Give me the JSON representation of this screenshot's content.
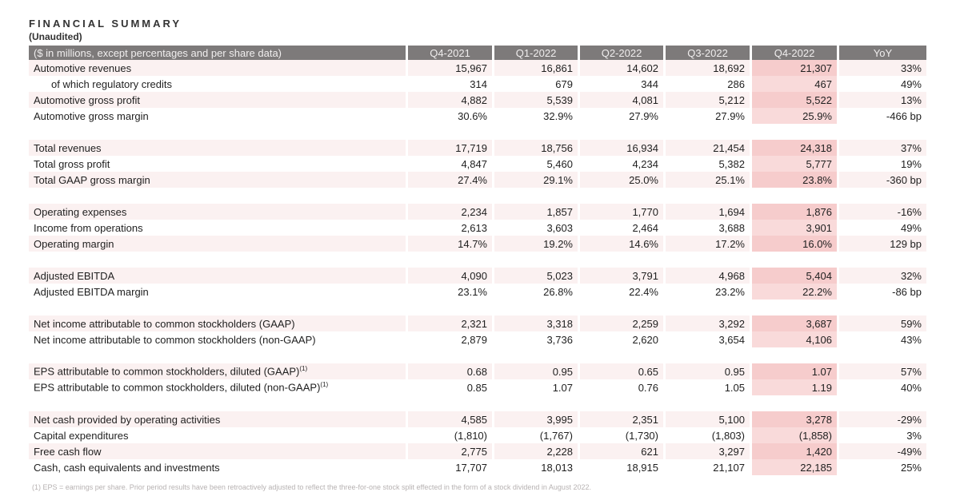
{
  "header": {
    "title": "FINANCIAL SUMMARY",
    "subtitle": "(Unaudited)"
  },
  "table": {
    "label_header": "($ in millions, except percentages and per share data)",
    "columns": [
      "Q4-2021",
      "Q1-2022",
      "Q2-2022",
      "Q3-2022",
      "Q4-2022",
      "YoY"
    ],
    "groups": [
      [
        {
          "label": "Automotive revenues",
          "values": [
            "15,967",
            "16,861",
            "14,602",
            "18,692",
            "21,307",
            "33%"
          ]
        },
        {
          "label": "of which regulatory credits",
          "indent": true,
          "values": [
            "314",
            "679",
            "344",
            "286",
            "467",
            "49%"
          ]
        },
        {
          "label": "Automotive gross profit",
          "values": [
            "4,882",
            "5,539",
            "4,081",
            "5,212",
            "5,522",
            "13%"
          ]
        },
        {
          "label": "Automotive gross margin",
          "values": [
            "30.6%",
            "32.9%",
            "27.9%",
            "27.9%",
            "25.9%",
            "-466 bp"
          ]
        }
      ],
      [
        {
          "label": "Total revenues",
          "values": [
            "17,719",
            "18,756",
            "16,934",
            "21,454",
            "24,318",
            "37%"
          ]
        },
        {
          "label": "Total gross profit",
          "values": [
            "4,847",
            "5,460",
            "4,234",
            "5,382",
            "5,777",
            "19%"
          ]
        },
        {
          "label": "Total GAAP gross margin",
          "values": [
            "27.4%",
            "29.1%",
            "25.0%",
            "25.1%",
            "23.8%",
            "-360 bp"
          ]
        }
      ],
      [
        {
          "label": "Operating expenses",
          "values": [
            "2,234",
            "1,857",
            "1,770",
            "1,694",
            "1,876",
            "-16%"
          ]
        },
        {
          "label": "Income from operations",
          "values": [
            "2,613",
            "3,603",
            "2,464",
            "3,688",
            "3,901",
            "49%"
          ]
        },
        {
          "label": "Operating margin",
          "values": [
            "14.7%",
            "19.2%",
            "14.6%",
            "17.2%",
            "16.0%",
            "129 bp"
          ]
        }
      ],
      [
        {
          "label": "Adjusted EBITDA",
          "values": [
            "4,090",
            "5,023",
            "3,791",
            "4,968",
            "5,404",
            "32%"
          ]
        },
        {
          "label": "Adjusted EBITDA margin",
          "values": [
            "23.1%",
            "26.8%",
            "22.4%",
            "23.2%",
            "22.2%",
            "-86 bp"
          ]
        }
      ],
      [
        {
          "label": "Net income attributable to common stockholders (GAAP)",
          "values": [
            "2,321",
            "3,318",
            "2,259",
            "3,292",
            "3,687",
            "59%"
          ]
        },
        {
          "label": "Net income attributable to common stockholders (non-GAAP)",
          "values": [
            "2,879",
            "3,736",
            "2,620",
            "3,654",
            "4,106",
            "43%"
          ]
        }
      ],
      [
        {
          "label": "EPS attributable to common stockholders, diluted (GAAP)",
          "sup": "(1)",
          "values": [
            "0.68",
            "0.95",
            "0.65",
            "0.95",
            "1.07",
            "57%"
          ]
        },
        {
          "label": "EPS attributable to common stockholders, diluted (non-GAAP)",
          "sup": "(1)",
          "values": [
            "0.85",
            "1.07",
            "0.76",
            "1.05",
            "1.19",
            "40%"
          ]
        }
      ],
      [
        {
          "label": "Net cash provided by operating activities",
          "values": [
            "4,585",
            "3,995",
            "2,351",
            "5,100",
            "3,278",
            "-29%"
          ]
        },
        {
          "label": "Capital expenditures",
          "values": [
            "(1,810)",
            "(1,767)",
            "(1,730)",
            "(1,803)",
            "(1,858)",
            "3%"
          ]
        },
        {
          "label": "Free cash flow",
          "values": [
            "2,775",
            "2,228",
            "621",
            "3,297",
            "1,420",
            "-49%"
          ]
        },
        {
          "label": "Cash, cash equivalents and investments",
          "values": [
            "17,707",
            "18,013",
            "18,915",
            "21,107",
            "22,185",
            "25%"
          ]
        }
      ]
    ]
  },
  "footnote": "(1) EPS = earnings per share. Prior period results have been retroactively adjusted to reflect the three-for-one stock split effected in the form of a stock dividend in August 2022."
}
